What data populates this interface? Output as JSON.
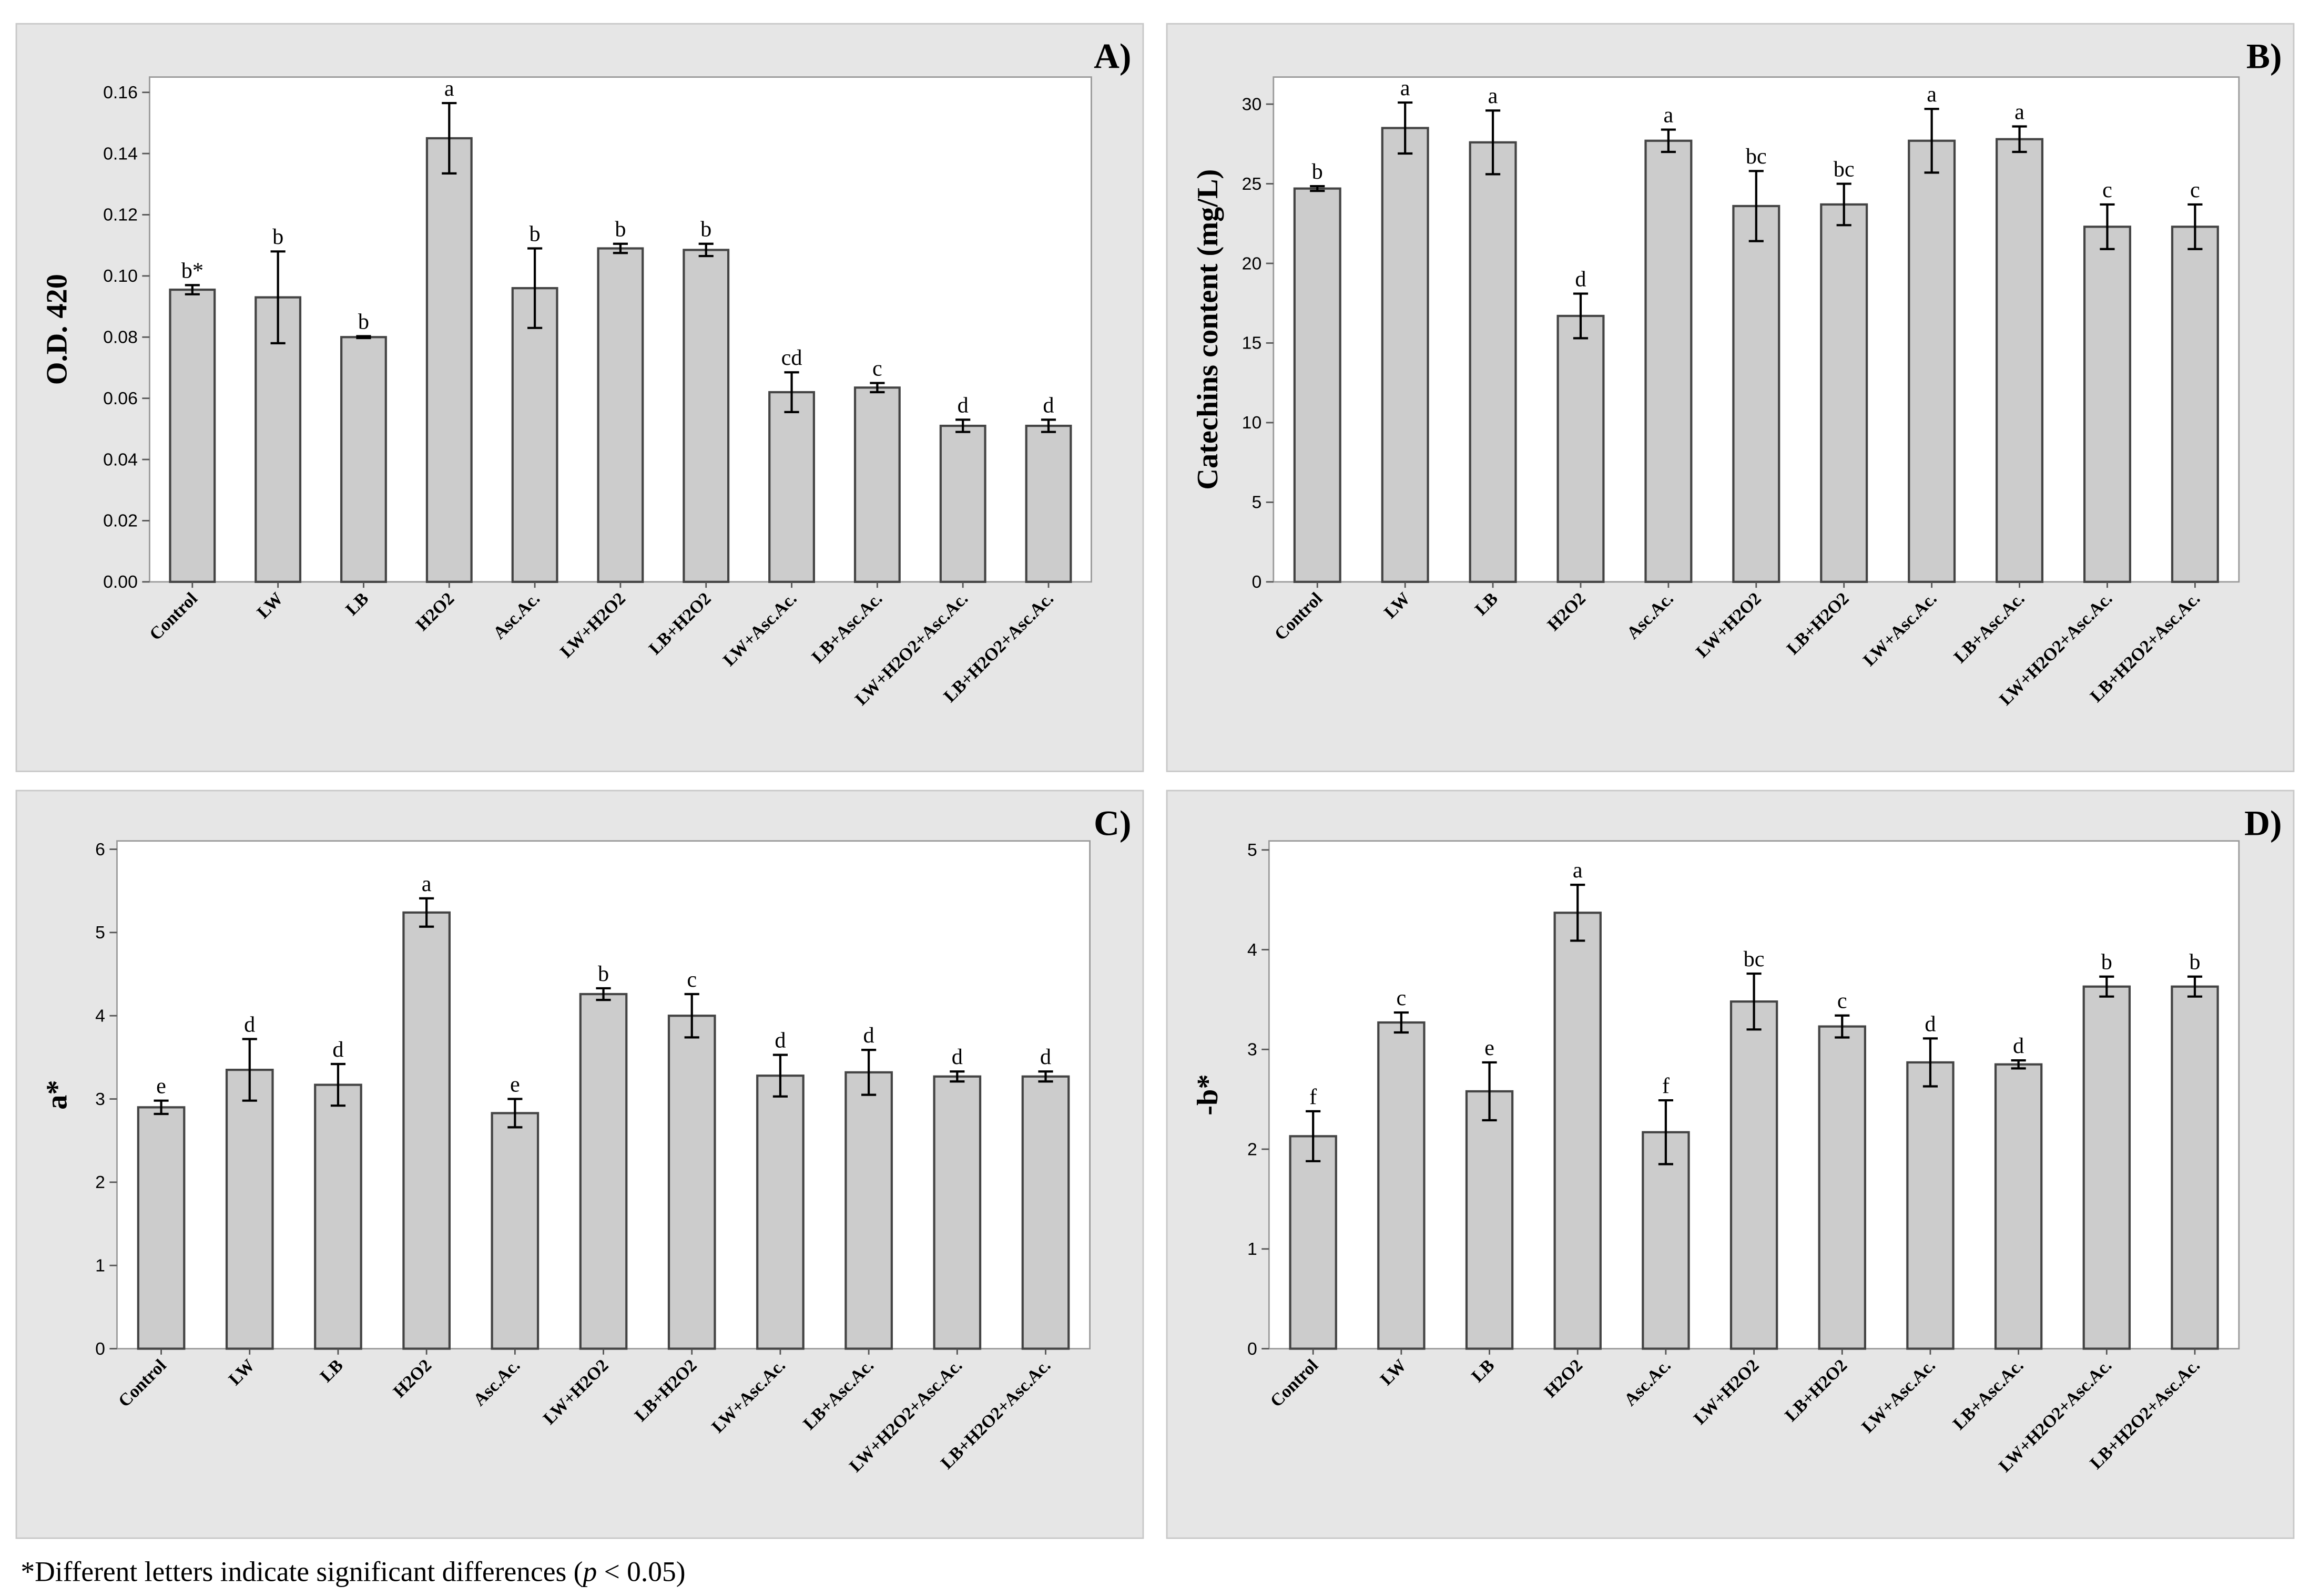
{
  "chart_data": [
    {
      "type": "bar",
      "panel_label": "A)",
      "y_label": "O.D. 420",
      "color": "#cccccc",
      "categories": [
        "Control",
        "LW",
        "LB",
        "H2O2",
        "Asc.Ac.",
        "LW+H2O2",
        "LB+H2O2",
        "LW+Asc.Ac.",
        "LB+Asc.Ac.",
        "LW+H2O2+Asc.Ac.",
        "LB+H2O2+Asc.Ac."
      ],
      "values": [
        0.0955,
        0.093,
        0.08,
        0.145,
        0.096,
        0.109,
        0.1085,
        0.062,
        0.0635,
        0.051,
        0.051
      ],
      "errors": [
        0.0015,
        0.015,
        0.0003,
        0.0115,
        0.013,
        0.0015,
        0.002,
        0.0065,
        0.0015,
        0.002,
        0.002
      ],
      "annotations": [
        "b*",
        "b",
        "b",
        "a",
        "b",
        "b",
        "b",
        "cd",
        "c",
        "d",
        "d"
      ],
      "ylim": [
        0,
        0.165
      ],
      "yticks": [
        {
          "value": 0,
          "label": "0.00"
        },
        0.02,
        0.04,
        0.06,
        0.08,
        {
          "value": 0.1,
          "label": "0.10"
        },
        0.12,
        0.14,
        0.16
      ]
    },
    {
      "type": "bar",
      "panel_label": "B)",
      "y_label": "Catechins content (mg/L)",
      "color": "#cccccc",
      "categories": [
        "Control",
        "LW",
        "LB",
        "H2O2",
        "Asc.Ac.",
        "LW+H2O2",
        "LB+H2O2",
        "LW+Asc.Ac.",
        "LB+Asc.Ac.",
        "LW+H2O2+Asc.Ac.",
        "LB+H2O2+Asc.Ac."
      ],
      "values": [
        24.7,
        28.5,
        27.6,
        16.7,
        27.7,
        23.6,
        23.7,
        27.7,
        27.8,
        22.3,
        22.3
      ],
      "errors": [
        0.15,
        1.6,
        2.0,
        1.4,
        0.7,
        2.2,
        1.3,
        2.0,
        0.8,
        1.4,
        1.4
      ],
      "annotations": [
        "b",
        "a",
        "a",
        "d",
        "a",
        "bc",
        "bc",
        "a",
        "a",
        "c",
        "c"
      ],
      "ylim": [
        0,
        31.7
      ],
      "yticks": [
        0,
        5,
        10,
        15,
        20,
        25,
        30
      ]
    },
    {
      "type": "bar",
      "panel_label": "C)",
      "y_label": "a*",
      "color": "#cccccc",
      "categories": [
        "Control",
        "LW",
        "LB",
        "H2O2",
        "Asc.Ac.",
        "LW+H2O2",
        "LB+H2O2",
        "LW+Asc.Ac.",
        "LB+Asc.Ac.",
        "LW+H2O2+Asc.Ac.",
        "LB+H2O2+Asc.Ac."
      ],
      "values": [
        2.9,
        3.35,
        3.17,
        5.24,
        2.83,
        4.26,
        4.0,
        3.28,
        3.32,
        3.27,
        3.27
      ],
      "errors": [
        0.08,
        0.37,
        0.25,
        0.17,
        0.17,
        0.07,
        0.26,
        0.25,
        0.27,
        0.06,
        0.06
      ],
      "annotations": [
        "e",
        "d",
        "d",
        "a",
        "e",
        "b",
        "c",
        "d",
        "d",
        "d",
        "d"
      ],
      "ylim": [
        0,
        6.1
      ],
      "yticks": [
        0,
        1,
        2,
        3,
        4,
        5,
        6
      ]
    },
    {
      "type": "bar",
      "panel_label": "D)",
      "y_label": "-b*",
      "color": "#cccccc",
      "categories": [
        "Control",
        "LW",
        "LB",
        "H2O2",
        "Asc.Ac.",
        "LW+H2O2",
        "LB+H2O2",
        "LW+Asc.Ac.",
        "LB+Asc.Ac.",
        "LW+H2O2+Asc.Ac.",
        "LB+H2O2+Asc.Ac."
      ],
      "values": [
        2.13,
        3.27,
        2.58,
        4.37,
        2.17,
        3.48,
        3.23,
        2.87,
        2.85,
        3.63,
        3.63
      ],
      "errors": [
        0.25,
        0.1,
        0.29,
        0.28,
        0.32,
        0.28,
        0.11,
        0.24,
        0.04,
        0.1,
        0.1
      ],
      "annotations": [
        "f",
        "c",
        "e",
        "a",
        "f",
        "bc",
        "c",
        "d",
        "d",
        "b",
        "b"
      ],
      "ylim": [
        0,
        5.09
      ],
      "yticks": [
        0,
        1,
        2,
        3,
        4,
        5
      ]
    }
  ],
  "note": [
    "*Different letters indicate significant differences (",
    "p",
    " < 0.05)"
  ]
}
